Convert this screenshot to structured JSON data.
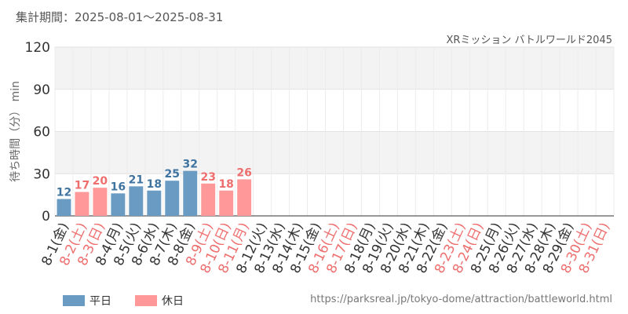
{
  "header": {
    "period": "集計期間：2025-08-01～2025-08-31",
    "attraction": "XRミッション バトルワールド2045"
  },
  "footer": {
    "url": "https://parksreal.jp/tokyo-dome/attraction/battleworld.html"
  },
  "colors": {
    "weekday": "#6a9bc3",
    "holiday": "#ff9999",
    "weekday_label": "#3f74a0",
    "holiday_label": "#ee6e6e",
    "tick": "#333333",
    "band": "#f3f3f3",
    "grid": "#e2e2e2"
  },
  "chart_data": {
    "type": "bar",
    "title": "",
    "xlabel": "",
    "ylabel": "待ち時間（分） min",
    "ylim": [
      0,
      120
    ],
    "yticks": [
      0,
      30,
      60,
      90,
      120
    ],
    "grid": true,
    "legend_position": "bottom-left",
    "categories": [
      "8-1(金)",
      "8-2(土)",
      "8-3(日)",
      "8-4(月)",
      "8-5(火)",
      "8-6(水)",
      "8-7(木)",
      "8-8(金)",
      "8-9(土)",
      "8-10(日)",
      "8-11(月)",
      "8-12(火)",
      "8-13(水)",
      "8-14(木)",
      "8-15(金)",
      "8-16(土)",
      "8-17(日)",
      "8-18(月)",
      "8-19(火)",
      "8-20(水)",
      "8-21(木)",
      "8-22(金)",
      "8-23(土)",
      "8-24(日)",
      "8-25(月)",
      "8-26(火)",
      "8-27(水)",
      "8-28(木)",
      "8-29(金)",
      "8-30(土)",
      "8-31(日)"
    ],
    "day_type": [
      "平日",
      "休日",
      "休日",
      "平日",
      "平日",
      "平日",
      "平日",
      "平日",
      "休日",
      "休日",
      "休日",
      "平日",
      "平日",
      "平日",
      "平日",
      "休日",
      "休日",
      "平日",
      "平日",
      "平日",
      "平日",
      "平日",
      "休日",
      "休日",
      "平日",
      "平日",
      "平日",
      "平日",
      "平日",
      "休日",
      "休日"
    ],
    "values": [
      12,
      17,
      20,
      16,
      21,
      18,
      25,
      32,
      23,
      18,
      26,
      null,
      null,
      null,
      null,
      null,
      null,
      null,
      null,
      null,
      null,
      null,
      null,
      null,
      null,
      null,
      null,
      null,
      null,
      null,
      null
    ],
    "legend": [
      {
        "label": "平日",
        "color": "#6a9bc3"
      },
      {
        "label": "休日",
        "color": "#ff9999"
      }
    ]
  }
}
